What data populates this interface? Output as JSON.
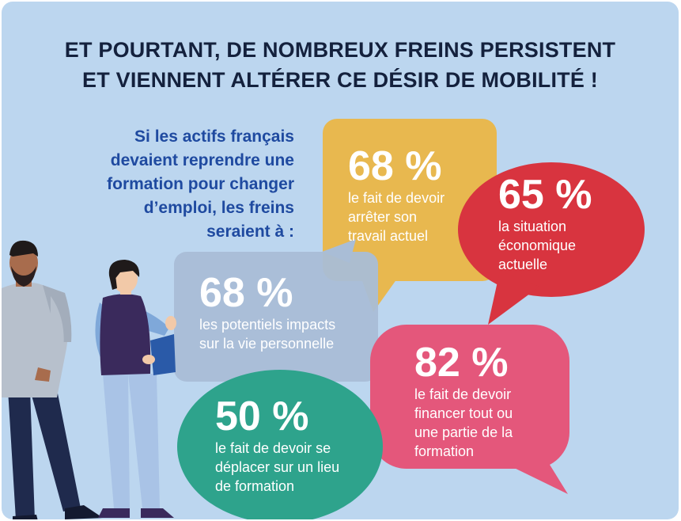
{
  "title": {
    "line1": "ET POURTANT, DE NOMBREUX FREINS PERSISTENT",
    "line2": "ET VIENNENT ALTÉRER CE DÉSIR DE MOBILITÉ !"
  },
  "intro": {
    "line1": "Si les actifs français",
    "line2": "devaient reprendre une",
    "line3": "formation pour changer",
    "line4": "d’emploi, les freins",
    "line5": "seraient à :"
  },
  "bubbles": {
    "yellow": {
      "value": "68 %",
      "line1": "le fait de devoir",
      "line2": "arrêter son",
      "line3": "travail actuel",
      "color": "#e8b84f"
    },
    "red": {
      "value": "65 %",
      "line1": "la situation",
      "line2": "économique",
      "line3": "actuelle",
      "color": "#d8343f"
    },
    "grey": {
      "value": "68 %",
      "line1": "les potentiels impacts",
      "line2": "sur la vie personnelle",
      "color": "#a9bdd6"
    },
    "pink": {
      "value": "82 %",
      "line1": "le fait de devoir",
      "line2": "financer tout ou",
      "line3": "une partie de la",
      "line4": "formation",
      "color": "#e4577b"
    },
    "green": {
      "value": "50 %",
      "line1": "le fait de devoir se",
      "line2": "déplacer sur un lieu",
      "line3": "de formation",
      "color": "#2ea38c"
    }
  },
  "background_color": "#bcd6ef",
  "title_color": "#14213d",
  "intro_color": "#1f4aa0",
  "illustration": {
    "left_person": "man-illustration",
    "right_person": "woman-with-clipboard-illustration"
  }
}
